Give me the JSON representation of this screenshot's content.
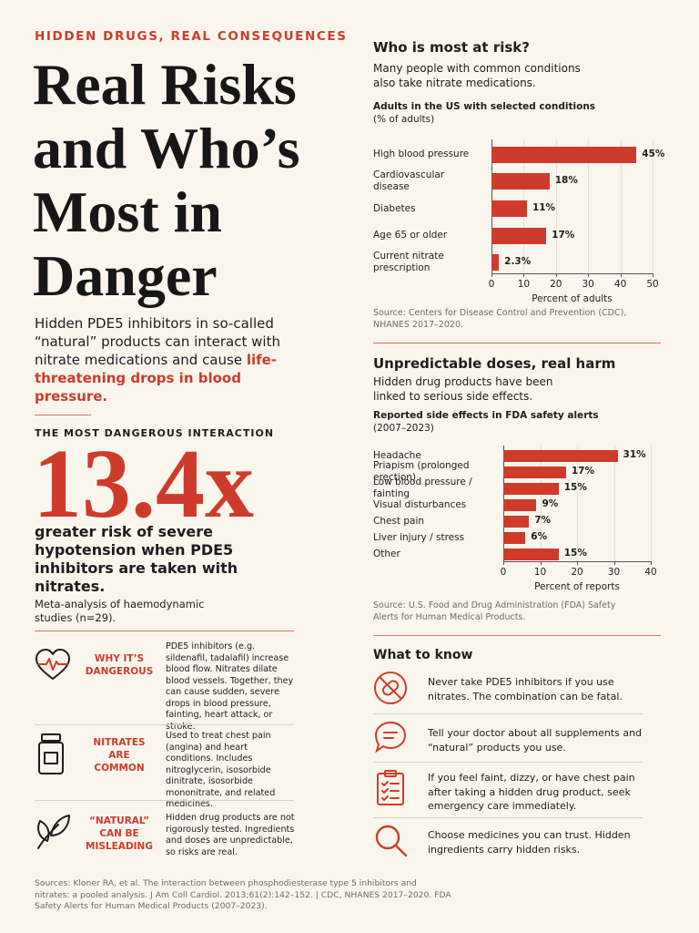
{
  "header": {
    "kicker": "HIDDEN DRUGS, REAL CONSEQUENCES",
    "title_lines": [
      "Real Risks",
      "and Who’s",
      "Most in",
      "Danger"
    ],
    "intro": "Hidden PDE5 inhibitors in so-called “natural” products can interact with nitrate medications and cause ",
    "intro_highlight": "life-threatening drops in blood pressure."
  },
  "stat": {
    "label": "THE MOST DANGEROUS INTERACTION",
    "value": "13.4x",
    "description": "greater risk of severe hypotension when PDE5 inhibitors are taken with nitrates.",
    "note": "Meta-analysis of haemodynamic studies (n=29)."
  },
  "facts": [
    {
      "title": "WHY IT’S DANGEROUS",
      "text": "PDE5 inhibitors (e.g. sildenafil, tadalafil) increase blood flow. Nitrates dilate blood vessels. Together, they can cause sudden, severe drops in blood pressure, fainting, heart attack, or stroke."
    },
    {
      "title": "NITRATES ARE COMMON",
      "text": "Used to treat chest pain (angina) and heart conditions. Includes nitroglycerin, isosorbide dinitrate, isosorbide mononitrate, and related medicines."
    },
    {
      "title": "“NATURAL” CAN BE MISLEADING",
      "text": "Hidden drug products are not rigorously tested. Ingredients and doses are unpredictable, so risks are real."
    }
  ],
  "chart_data": [
    {
      "type": "bar",
      "heading": "Who is most at risk?",
      "description": "Many people with common conditions also take nitrate medications.",
      "title": "Adults in the US with selected conditions",
      "subtitle": "(% of adults)",
      "categories": [
        "High blood pressure",
        "Cardiovascular disease",
        "Diabetes",
        "Age 65 or older",
        "Current nitrate prescription"
      ],
      "values": [
        45,
        18,
        11,
        17,
        2.3
      ],
      "value_labels": [
        "45%",
        "18%",
        "11%",
        "17%",
        "2.3%"
      ],
      "color": "#cf3b2b",
      "xlim": [
        0,
        50
      ],
      "xticks": [
        0,
        10,
        20,
        30,
        40,
        50
      ],
      "xlabel": "Percent of adults",
      "source": "Source: Centers for Disease Control and Prevention (CDC), NHANES 2017–2020."
    },
    {
      "type": "bar",
      "heading": "Unpredictable doses, real harm",
      "description": "Hidden drug products have been linked to serious side effects.",
      "title": "Reported side effects in FDA safety alerts",
      "subtitle": "(2007–2023)",
      "categories": [
        "Headache",
        "Priapism (prolonged erection)",
        "Low blood pressure / fainting",
        "Visual disturbances",
        "Chest pain",
        "Liver injury / stress",
        "Other"
      ],
      "values": [
        31,
        17,
        15,
        9,
        7,
        6,
        15
      ],
      "value_labels": [
        "31%",
        "17%",
        "15%",
        "9%",
        "7%",
        "6%",
        "15%"
      ],
      "color": "#cf3b2b",
      "xlim": [
        0,
        40
      ],
      "xticks": [
        0,
        10,
        20,
        30,
        40
      ],
      "xlabel": "Percent of reports",
      "source": "Source: U.S. Food and Drug Administration (FDA) Safety Alerts for Human Medical Products."
    }
  ],
  "know": {
    "title": "What to know",
    "items": [
      "Never take PDE5 inhibitors if you use nitrates. The combination can be fatal.",
      "Tell your doctor about all supplements and “natural” products you use.",
      "If you feel faint, dizzy, or have chest pain after taking a hidden drug product, seek emergency care immediately.",
      "Choose medicines you can trust. Hidden ingredients carry hidden risks."
    ]
  },
  "sources": "Sources: Kloner RA, et al. The interaction between phosphodiesterase type 5 inhibitors and nitrates: a pooled analysis. J Am Coll Cardiol. 2013;61(2):142–152. | CDC, NHANES 2017–2020. FDA Safety Alerts for Human Medical Products (2007–2023)."
}
